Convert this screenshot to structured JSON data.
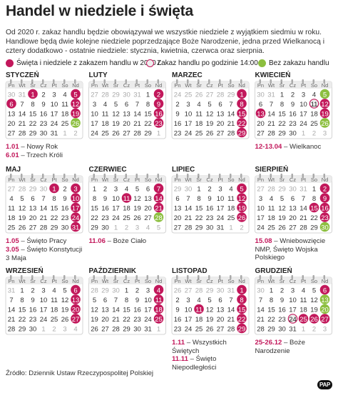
{
  "header": {
    "title": "Handel w niedziele i święta",
    "intro": "Od 2020 r. zakaz handlu będzie obowiązywał we wszystkie niedziele z wyjątkiem siedmiu w roku. Handlowe będą dwie kolejne niedziele poprzedzające Boże Narodzenie, jedna przed Wielkanocą i cztery dodatkowo - ostatnie niedziele: stycznia, kwietnia, czerwca oraz sierpnia."
  },
  "legend": {
    "ban": "Święta i niedziele z zakazem handlu w 2020 r.",
    "early": "Zakaz handlu po godzinie 14:00",
    "free": "Bez zakazu handlu"
  },
  "weekdays": [
    "Pn",
    "Wt",
    "Śr",
    "Cz",
    "Pt",
    "So",
    "Nd"
  ],
  "months": [
    {
      "name": "STYCZEŃ",
      "weeks": [
        [
          30,
          31,
          1,
          2,
          3,
          4,
          5
        ],
        [
          6,
          7,
          8,
          9,
          10,
          11,
          12
        ],
        [
          13,
          14,
          15,
          16,
          17,
          18,
          19
        ],
        [
          20,
          21,
          22,
          23,
          24,
          25,
          26
        ],
        [
          27,
          28,
          29,
          30,
          31,
          1,
          2
        ]
      ],
      "ban": [
        1,
        5,
        6,
        12,
        19
      ],
      "free": [
        26
      ],
      "notes": [
        {
          "date": "1.01",
          "text": "– Nowy Rok"
        },
        {
          "date": "6.01",
          "text": "– Trzech Króli"
        }
      ]
    },
    {
      "name": "LUTY",
      "weeks": [
        [
          27,
          28,
          29,
          30,
          31,
          1,
          2
        ],
        [
          3,
          4,
          5,
          6,
          7,
          8,
          9
        ],
        [
          10,
          11,
          12,
          13,
          14,
          15,
          16
        ],
        [
          17,
          18,
          19,
          20,
          21,
          22,
          23
        ],
        [
          24,
          25,
          26,
          27,
          28,
          29,
          1
        ]
      ],
      "ban": [
        2,
        9,
        16,
        23
      ]
    },
    {
      "name": "MARZEC",
      "weeks": [
        [
          24,
          25,
          26,
          27,
          28,
          29,
          1
        ],
        [
          2,
          3,
          4,
          5,
          6,
          7,
          8
        ],
        [
          9,
          10,
          11,
          12,
          13,
          14,
          15
        ],
        [
          16,
          17,
          18,
          19,
          20,
          21,
          22
        ],
        [
          23,
          24,
          25,
          26,
          27,
          28,
          29
        ]
      ],
      "ban": [
        1,
        8,
        15,
        22,
        29
      ]
    },
    {
      "name": "KWIECIEŃ",
      "weeks": [
        [
          30,
          31,
          1,
          2,
          3,
          4,
          5
        ],
        [
          6,
          7,
          8,
          9,
          10,
          11,
          12
        ],
        [
          13,
          14,
          15,
          16,
          17,
          18,
          19
        ],
        [
          20,
          21,
          22,
          23,
          24,
          25,
          26
        ],
        [
          27,
          28,
          29,
          30,
          1,
          2,
          3
        ]
      ],
      "ban": [
        12,
        13,
        19
      ],
      "early": [
        11
      ],
      "free": [
        5,
        26
      ],
      "notes": [
        {
          "date": "12-13.04",
          "text": "– Wielkanoc"
        }
      ]
    },
    {
      "name": "MAJ",
      "weeks": [
        [
          27,
          28,
          29,
          30,
          1,
          2,
          3
        ],
        [
          4,
          5,
          6,
          7,
          8,
          9,
          10
        ],
        [
          11,
          12,
          13,
          14,
          15,
          16,
          17
        ],
        [
          18,
          19,
          20,
          21,
          22,
          23,
          24
        ],
        [
          25,
          26,
          27,
          28,
          29,
          30,
          31
        ]
      ],
      "ban": [
        1,
        3,
        10,
        17,
        24,
        31
      ],
      "notes": [
        {
          "date": "1.05",
          "text": "– Święto Pracy"
        },
        {
          "date": "3.05",
          "text": "– Święto Konstytucji 3 Maja"
        }
      ]
    },
    {
      "name": "CZERWIEC",
      "weeks": [
        [
          1,
          2,
          3,
          4,
          5,
          6,
          7
        ],
        [
          8,
          9,
          10,
          11,
          12,
          13,
          14
        ],
        [
          15,
          16,
          17,
          18,
          19,
          20,
          21
        ],
        [
          22,
          23,
          24,
          25,
          26,
          27,
          28
        ],
        [
          29,
          30,
          1,
          2,
          3,
          4,
          5
        ]
      ],
      "ban": [
        7,
        11,
        14,
        21
      ],
      "free": [
        28
      ],
      "notes": [
        {
          "date": "11.06",
          "text": "– Boże Ciało"
        }
      ]
    },
    {
      "name": "LIPIEC",
      "weeks": [
        [
          29,
          30,
          1,
          2,
          3,
          4,
          5
        ],
        [
          6,
          7,
          8,
          9,
          10,
          11,
          12
        ],
        [
          13,
          14,
          15,
          16,
          17,
          18,
          19
        ],
        [
          20,
          21,
          22,
          23,
          24,
          25,
          26
        ],
        [
          27,
          28,
          29,
          30,
          31,
          1,
          2
        ]
      ],
      "ban": [
        5,
        12,
        19,
        26
      ]
    },
    {
      "name": "SIERPIEŃ",
      "weeks": [
        [
          27,
          28,
          29,
          30,
          31,
          1,
          2
        ],
        [
          3,
          4,
          5,
          6,
          7,
          8,
          9
        ],
        [
          10,
          11,
          12,
          13,
          14,
          15,
          16
        ],
        [
          17,
          18,
          19,
          20,
          21,
          22,
          23
        ],
        [
          24,
          25,
          26,
          27,
          28,
          29,
          30
        ]
      ],
      "ban": [
        2,
        9,
        15,
        16,
        23
      ],
      "free": [
        30
      ],
      "notes": [
        {
          "date": "15.08",
          "text": "– Wniebowzięcie NMP, Święto Wojska Polskiego"
        }
      ]
    },
    {
      "name": "WRZESIEŃ",
      "weeks": [
        [
          31,
          1,
          2,
          3,
          4,
          5,
          6
        ],
        [
          7,
          8,
          9,
          10,
          11,
          12,
          13
        ],
        [
          14,
          15,
          16,
          17,
          18,
          19,
          20
        ],
        [
          21,
          22,
          23,
          24,
          25,
          26,
          27
        ],
        [
          28,
          29,
          30,
          1,
          2,
          3,
          4
        ]
      ],
      "ban": [
        6,
        13,
        20,
        27
      ]
    },
    {
      "name": "PAŹDZIERNIK",
      "weeks": [
        [
          28,
          29,
          30,
          1,
          2,
          3,
          4
        ],
        [
          5,
          6,
          7,
          8,
          9,
          10,
          11
        ],
        [
          12,
          13,
          14,
          15,
          16,
          17,
          18
        ],
        [
          19,
          20,
          21,
          22,
          23,
          24,
          25
        ],
        [
          26,
          27,
          28,
          29,
          30,
          31,
          1
        ]
      ],
      "ban": [
        4,
        11,
        18,
        25
      ]
    },
    {
      "name": "LISTOPAD",
      "weeks": [
        [
          26,
          27,
          28,
          29,
          30,
          31,
          1
        ],
        [
          2,
          3,
          4,
          5,
          6,
          7,
          8
        ],
        [
          9,
          10,
          11,
          12,
          13,
          14,
          15
        ],
        [
          16,
          17,
          18,
          19,
          20,
          21,
          22
        ],
        [
          23,
          24,
          25,
          26,
          27,
          28,
          29
        ]
      ],
      "ban": [
        1,
        8,
        11,
        15,
        22,
        29
      ],
      "notes": [
        {
          "date": "1.11",
          "text": "– Wszystkich Świętych"
        },
        {
          "date": "11.11",
          "text": "– Święto Niepodległości"
        }
      ]
    },
    {
      "name": "GRUDZIEŃ",
      "weeks": [
        [
          30,
          1,
          2,
          3,
          4,
          5,
          6
        ],
        [
          7,
          8,
          9,
          10,
          11,
          12,
          13
        ],
        [
          14,
          15,
          16,
          17,
          18,
          19,
          20
        ],
        [
          21,
          22,
          23,
          24,
          25,
          26,
          27
        ],
        [
          28,
          29,
          30,
          31,
          1,
          2,
          3
        ]
      ],
      "ban": [
        6,
        25,
        26,
        27
      ],
      "early": [
        24
      ],
      "free": [
        13,
        20
      ],
      "notes": [
        {
          "date": "25-26.12",
          "text": "– Boże Narodzenie"
        }
      ]
    }
  ],
  "source": "Źródło: Dziennik Ustaw Rzeczypospolitej Polskiej",
  "logo": "PAP"
}
